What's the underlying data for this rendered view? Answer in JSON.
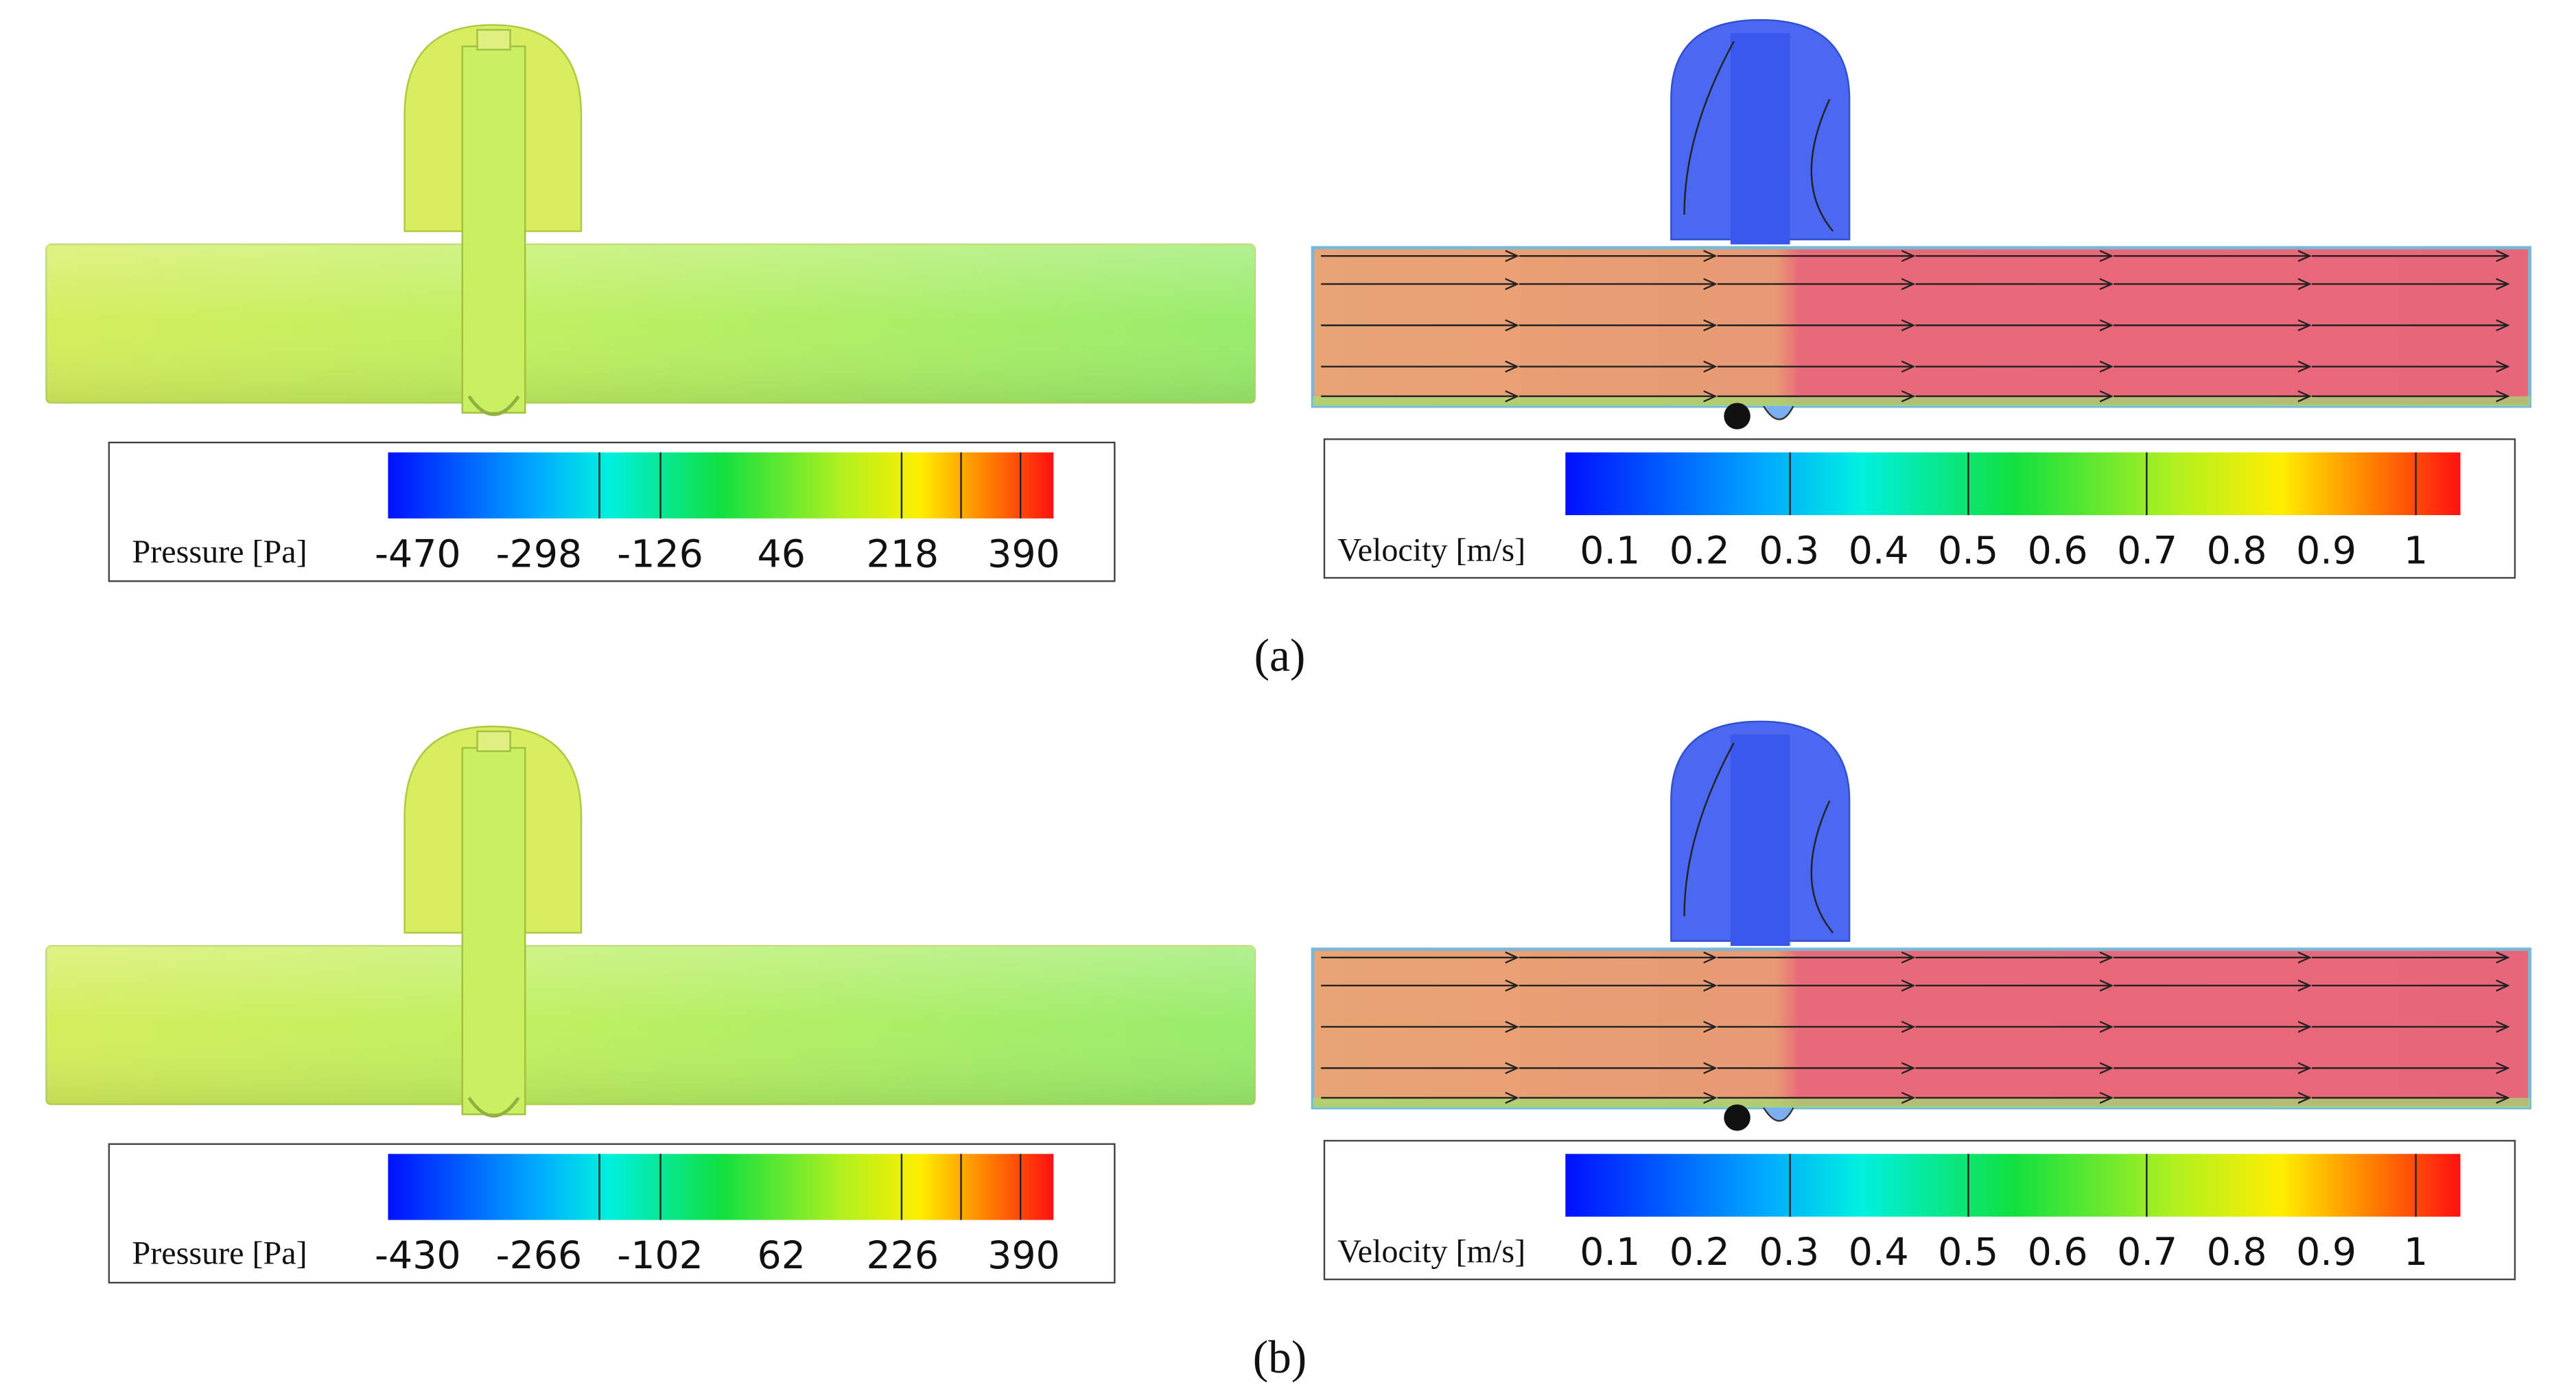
{
  "panels": [
    {
      "caption": "(a)",
      "pressure": {
        "label": "Pressure [Pa]",
        "ticks": [
          -470,
          -298,
          -126,
          46,
          218,
          390
        ]
      },
      "velocity": {
        "label": "Velocity [m/s]",
        "ticks": [
          0.1,
          0.2,
          0.3,
          0.4,
          0.5,
          0.6,
          0.7,
          0.8,
          0.9,
          1
        ]
      }
    },
    {
      "caption": "(b)",
      "pressure": {
        "label": "Pressure [Pa]",
        "ticks": [
          -430,
          -266,
          -102,
          62,
          226,
          390
        ]
      },
      "velocity": {
        "label": "Velocity [m/s]",
        "ticks": [
          0.1,
          0.2,
          0.3,
          0.4,
          0.5,
          0.6,
          0.7,
          0.8,
          0.9,
          1
        ]
      }
    }
  ]
}
